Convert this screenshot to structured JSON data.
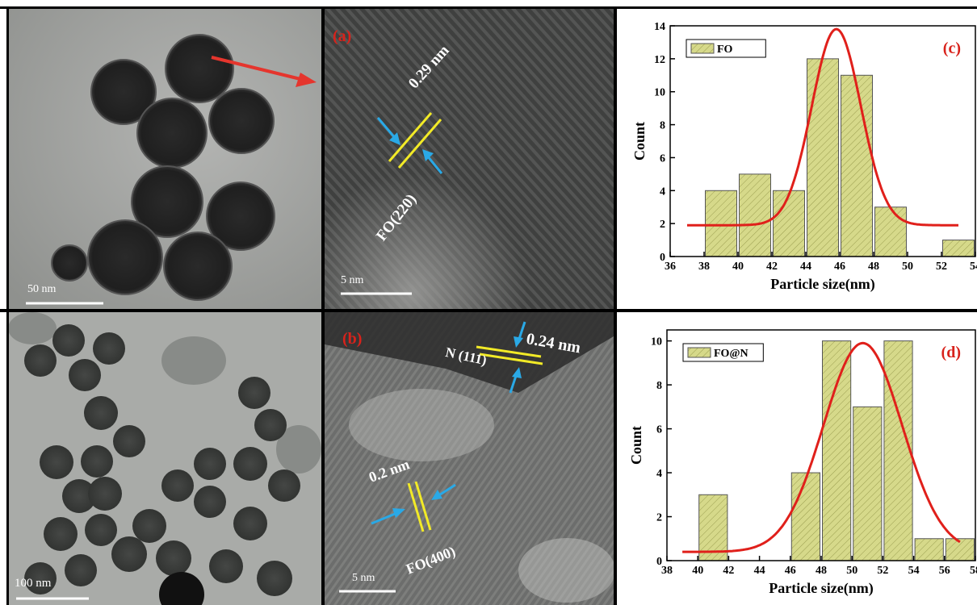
{
  "figure": {
    "panel_a": {
      "label": "(a)",
      "spacing": "0.29 nm",
      "plane": "FO(220)",
      "scale": "5 nm"
    },
    "panel_b": {
      "label": "(b)",
      "spacing1": "0.24 nm",
      "plane1": "N (111)",
      "spacing2": "0.2 nm",
      "plane2": "FO(400)",
      "scale": "5 nm"
    },
    "tem_top": {
      "scale": "50 nm"
    },
    "tem_bottom": {
      "scale": "100 nm"
    },
    "colors": {
      "bar": "#d6d98a",
      "fit": "#e0201b",
      "label": "#d8221b",
      "fringe": "#f2ea27",
      "arrow": "#2aa9e6",
      "pointer": "#e5352d"
    }
  },
  "chart_data": [
    {
      "type": "bar",
      "panel_label": "(c)",
      "legend": "FO",
      "xlabel": "Particle size(nm)",
      "ylabel": "Count",
      "xlim": [
        36,
        54
      ],
      "ylim": [
        0,
        14
      ],
      "xticks": [
        36,
        38,
        40,
        42,
        44,
        46,
        48,
        50,
        52,
        54
      ],
      "yticks": [
        0,
        2,
        4,
        6,
        8,
        10,
        12,
        14
      ],
      "bins": [
        {
          "x0": 38,
          "x1": 40,
          "value": 4
        },
        {
          "x0": 40,
          "x1": 42,
          "value": 5
        },
        {
          "x0": 42,
          "x1": 44,
          "value": 4
        },
        {
          "x0": 44,
          "x1": 46,
          "value": 12
        },
        {
          "x0": 46,
          "x1": 48,
          "value": 11
        },
        {
          "x0": 48,
          "x1": 50,
          "value": 3
        },
        {
          "x0": 52,
          "x1": 54,
          "value": 1
        }
      ],
      "fit": {
        "baseline": 1.9,
        "amplitude": 11.9,
        "center": 45.8,
        "sigma": 1.45,
        "x_range": [
          37,
          53
        ]
      }
    },
    {
      "type": "bar",
      "panel_label": "(d)",
      "legend": "FO@N",
      "xlabel": "Particle size(nm)",
      "ylabel": "Count",
      "xlim": [
        38,
        58
      ],
      "ylim": [
        0,
        10.5
      ],
      "xticks": [
        38,
        40,
        42,
        44,
        46,
        48,
        50,
        52,
        54,
        56,
        58
      ],
      "yticks": [
        0,
        2,
        4,
        6,
        8,
        10
      ],
      "bins": [
        {
          "x0": 40,
          "x1": 42,
          "value": 3
        },
        {
          "x0": 46,
          "x1": 48,
          "value": 4
        },
        {
          "x0": 48,
          "x1": 50,
          "value": 10
        },
        {
          "x0": 50,
          "x1": 52,
          "value": 7
        },
        {
          "x0": 52,
          "x1": 54,
          "value": 10
        },
        {
          "x0": 54,
          "x1": 56,
          "value": 1
        },
        {
          "x0": 56,
          "x1": 58,
          "value": 1
        }
      ],
      "fit": {
        "baseline": 0.4,
        "amplitude": 9.5,
        "center": 50.7,
        "sigma": 2.55,
        "x_range": [
          39,
          57
        ]
      }
    }
  ]
}
